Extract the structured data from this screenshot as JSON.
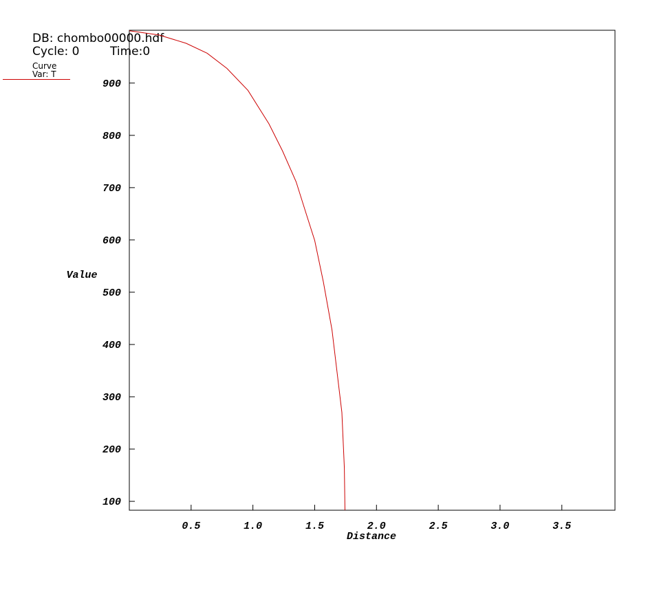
{
  "header": {
    "db": "DB: chombo00000.hdf",
    "cycle": "Cycle: 0",
    "time": "Time:0"
  },
  "legend": {
    "title": "Curve",
    "var": "Var: T"
  },
  "chart_data": {
    "type": "line",
    "xlabel": "Distance",
    "ylabel": "Value",
    "x": [
      0,
      0.24,
      0.46,
      0.63,
      0.79,
      0.96,
      1.13,
      1.24,
      1.35,
      1.43,
      1.5,
      1.57,
      1.64,
      1.68,
      1.72,
      1.74,
      1.745
    ],
    "series": [
      {
        "name": "Var: T",
        "color": "#cc0000",
        "values": [
          1000,
          992,
          976,
          957,
          928,
          886,
          822,
          770,
          711,
          651,
          599,
          520,
          428,
          349,
          270,
          164,
          83
        ]
      }
    ],
    "xlim": [
      0,
      3.93
    ],
    "ylim": [
      83,
      1001
    ],
    "xticks": [
      0.5,
      {
        "value": 1,
        "label": "1.0"
      },
      1.5,
      {
        "value": 2,
        "label": "2.0"
      },
      2.5,
      {
        "value": 3,
        "label": "3.0"
      },
      3.5
    ],
    "yticks": [
      100,
      200,
      300,
      400,
      500,
      600,
      700,
      800,
      900
    ],
    "grid": false
  }
}
